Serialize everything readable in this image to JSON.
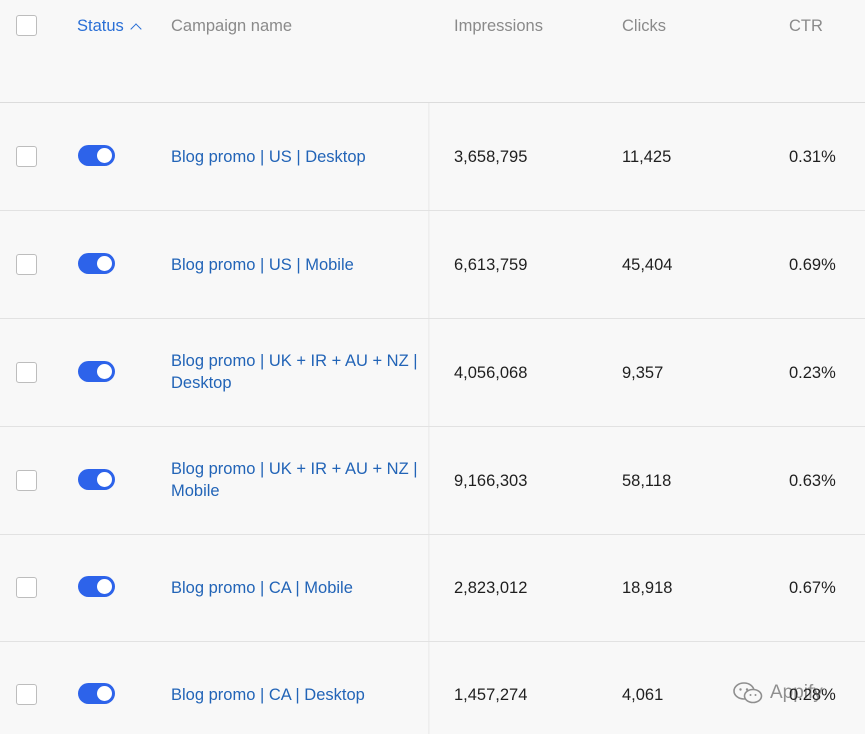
{
  "header": {
    "status": "Status",
    "campaign_name": "Campaign name",
    "impressions": "Impressions",
    "clicks": "Clicks",
    "ctr": "CTR"
  },
  "rows": [
    {
      "name": "Blog promo | US | Desktop",
      "impressions": "3,658,795",
      "clicks": "11,425",
      "ctr": "0.31%",
      "enabled": true
    },
    {
      "name": "Blog promo | US | Mobile",
      "impressions": "6,613,759",
      "clicks": "45,404",
      "ctr": "0.69%",
      "enabled": true
    },
    {
      "name": "Blog promo | UK + IR + AU + NZ | Desktop",
      "impressions": "4,056,068",
      "clicks": "9,357",
      "ctr": "0.23%",
      "enabled": true
    },
    {
      "name": "Blog promo | UK + IR + AU + NZ | Mobile",
      "impressions": "9,166,303",
      "clicks": "58,118",
      "ctr": "0.63%",
      "enabled": true
    },
    {
      "name": "Blog promo | CA | Mobile",
      "impressions": "2,823,012",
      "clicks": "18,918",
      "ctr": "0.67%",
      "enabled": true
    },
    {
      "name": "Blog promo | CA | Desktop",
      "impressions": "1,457,274",
      "clicks": "4,061",
      "ctr": "0.28%",
      "enabled": true
    }
  ],
  "watermark": "Appify",
  "colors": {
    "accent": "#2d63ea",
    "link": "#2264b7",
    "header_text": "#8a8a8a"
  }
}
